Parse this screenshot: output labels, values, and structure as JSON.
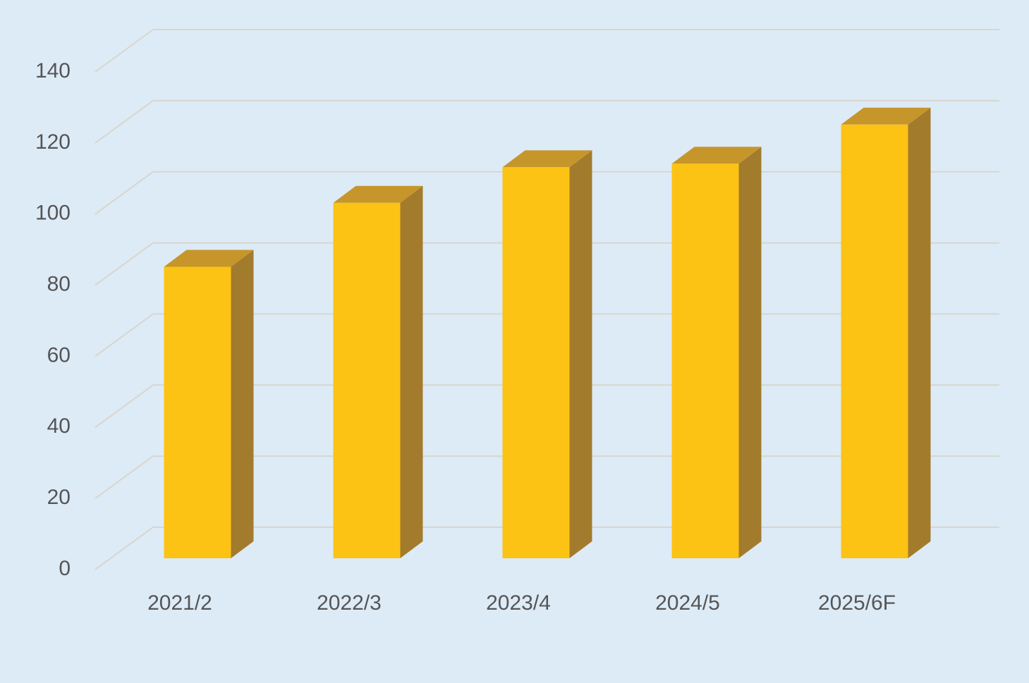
{
  "chart_data": {
    "type": "bar3d",
    "categories": [
      "2021/2",
      "2022/3",
      "2023/4",
      "2024/5",
      "2025/6F"
    ],
    "values": [
      82,
      100,
      110,
      111,
      122
    ],
    "color": "#fcc314",
    "side_color": "#a37b2c",
    "top_color": "#c6962b",
    "ylim": [
      0,
      140
    ],
    "yticks": [
      0,
      20,
      40,
      60,
      80,
      100,
      120,
      140
    ],
    "grid": true
  }
}
